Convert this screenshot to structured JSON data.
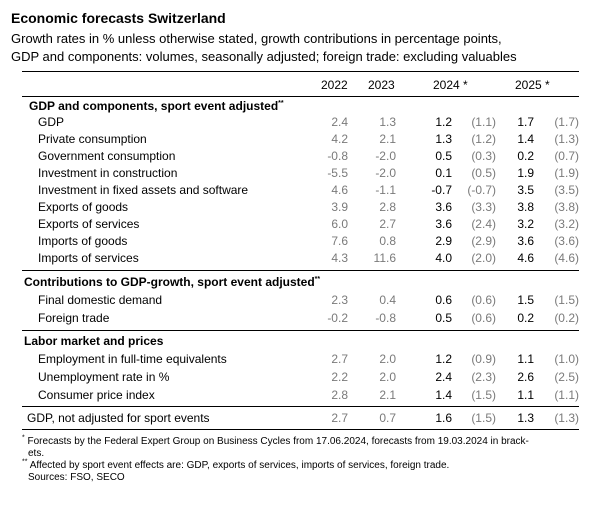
{
  "title": "Economic forecasts Switzerland",
  "subtitle_1": "Growth rates in % unless otherwise stated, growth contributions in percentage points,",
  "subtitle_2": "GDP and components: volumes, seasonally adjusted; foreign trade: excluding valuables",
  "columns": {
    "y2022": "2022",
    "y2023": "2023",
    "y2024": "2024 *",
    "y2025": "2025 *"
  },
  "sections": {
    "gdp_components": {
      "title": "GDP and components, sport event adjusted",
      "mark": "**"
    },
    "contributions": {
      "title": "Contributions to GDP-growth, sport event adjusted",
      "mark": "**"
    },
    "labor": {
      "title": "Labor market and prices",
      "mark": ""
    }
  },
  "rows": {
    "gdp": {
      "label": "GDP",
      "y2022": "2.4",
      "y2023": "1.3",
      "y2024": "1.2",
      "p2024": "(1.1)",
      "y2025": "1.7",
      "p2025": "(1.7)"
    },
    "private_consumption": {
      "label": "Private consumption",
      "y2022": "4.2",
      "y2023": "2.1",
      "y2024": "1.3",
      "p2024": "(1.2)",
      "y2025": "1.4",
      "p2025": "(1.3)"
    },
    "government_consumption": {
      "label": "Government consumption",
      "y2022": "-0.8",
      "y2023": "-2.0",
      "y2024": "0.5",
      "p2024": "(0.3)",
      "y2025": "0.2",
      "p2025": "(0.7)"
    },
    "investment_construction": {
      "label": "Investment in construction",
      "y2022": "-5.5",
      "y2023": "-2.0",
      "y2024": "0.1",
      "p2024": "(0.5)",
      "y2025": "1.9",
      "p2025": "(1.9)"
    },
    "investment_fixed": {
      "label": "Investment in fixed assets and software",
      "y2022": "4.6",
      "y2023": "-1.1",
      "y2024": "-0.7",
      "p2024": "(-0.7)",
      "y2025": "3.5",
      "p2025": "(3.5)"
    },
    "exports_goods": {
      "label": "Exports of goods",
      "y2022": "3.9",
      "y2023": "2.8",
      "y2024": "3.6",
      "p2024": "(3.3)",
      "y2025": "3.8",
      "p2025": "(3.8)"
    },
    "exports_services": {
      "label": "Exports of services",
      "y2022": "6.0",
      "y2023": "2.7",
      "y2024": "3.6",
      "p2024": "(2.4)",
      "y2025": "3.2",
      "p2025": "(3.2)"
    },
    "imports_goods": {
      "label": "Imports of goods",
      "y2022": "7.6",
      "y2023": "0.8",
      "y2024": "2.9",
      "p2024": "(2.9)",
      "y2025": "3.6",
      "p2025": "(3.6)"
    },
    "imports_services": {
      "label": "Imports of services",
      "y2022": "4.3",
      "y2023": "11.6",
      "y2024": "4.0",
      "p2024": "(2.0)",
      "y2025": "4.6",
      "p2025": "(4.6)"
    },
    "final_domestic": {
      "label": "Final domestic demand",
      "y2022": "2.3",
      "y2023": "0.4",
      "y2024": "0.6",
      "p2024": "(0.6)",
      "y2025": "1.5",
      "p2025": "(1.5)"
    },
    "foreign_trade": {
      "label": "Foreign trade",
      "y2022": "-0.2",
      "y2023": "-0.8",
      "y2024": "0.5",
      "p2024": "(0.6)",
      "y2025": "0.2",
      "p2025": "(0.2)"
    },
    "employment": {
      "label": "Employment in full-time equivalents",
      "y2022": "2.7",
      "y2023": "2.0",
      "y2024": "1.2",
      "p2024": "(0.9)",
      "y2025": "1.1",
      "p2025": "(1.0)"
    },
    "unemployment": {
      "label": "Unemployment rate in %",
      "y2022": "2.2",
      "y2023": "2.0",
      "y2024": "2.4",
      "p2024": "(2.3)",
      "y2025": "2.6",
      "p2025": "(2.5)"
    },
    "cpi": {
      "label": "Consumer price index",
      "y2022": "2.8",
      "y2023": "2.1",
      "y2024": "1.4",
      "p2024": "(1.5)",
      "y2025": "1.1",
      "p2025": "(1.1)"
    },
    "gdp_unadjusted": {
      "label": "GDP, not adjusted for sport events",
      "y2022": "2.7",
      "y2023": "0.7",
      "y2024": "1.6",
      "p2024": "(1.5)",
      "y2025": "1.3",
      "p2025": "(1.3)"
    }
  },
  "footnotes": {
    "f1_mark": "*",
    "f1_line1": "Forecasts by the Federal Expert Group on Business Cycles from 17.06.2024, forecasts from 19.03.2024 in brack-",
    "f1_line2": "ets.",
    "f2_mark": "**",
    "f2_text": "Affected by sport event effects are: GDP, exports of services, imports of services, foreign trade.",
    "sources": "Sources: FSO, SECO"
  }
}
